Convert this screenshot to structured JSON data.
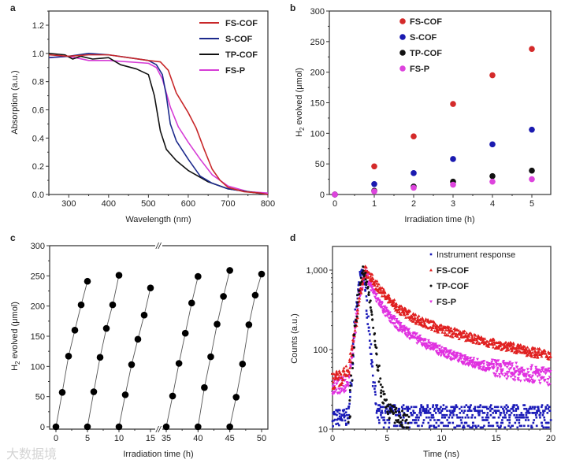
{
  "watermark": "大数据境",
  "chart_data": [
    {
      "panel": "a",
      "type": "line",
      "xlabel": "Wavelength (nm)",
      "ylabel": "Absorption (a.u.)",
      "xlim": [
        250,
        800
      ],
      "ylim": [
        0,
        1.3
      ],
      "xticks": [
        300,
        400,
        500,
        600,
        700,
        800
      ],
      "yticks": [
        0.0,
        0.2,
        0.4,
        0.6,
        0.8,
        1.0,
        1.2
      ],
      "ytick_labels": [
        "0.0",
        "0.2",
        "0.4",
        "0.6",
        "0.8",
        "1.0",
        "1.2"
      ],
      "legend_position": "top-right",
      "series": [
        {
          "name": "FS-COF",
          "color": "#c8282a",
          "x": [
            250,
            300,
            350,
            400,
            450,
            500,
            530,
            550,
            570,
            600,
            620,
            640,
            660,
            680,
            700,
            740,
            780,
            800
          ],
          "y": [
            0.99,
            0.98,
            0.99,
            0.99,
            0.97,
            0.95,
            0.94,
            0.88,
            0.72,
            0.58,
            0.47,
            0.32,
            0.18,
            0.1,
            0.05,
            0.02,
            0.01,
            0.0
          ]
        },
        {
          "name": "S-COF",
          "color": "#1c2a8c",
          "x": [
            250,
            300,
            350,
            400,
            450,
            500,
            520,
            535,
            545,
            555,
            570,
            600,
            630,
            660,
            700,
            750,
            800
          ],
          "y": [
            0.97,
            0.98,
            1.0,
            0.99,
            0.97,
            0.95,
            0.92,
            0.85,
            0.7,
            0.5,
            0.38,
            0.25,
            0.13,
            0.08,
            0.04,
            0.02,
            0.0
          ]
        },
        {
          "name": "TP-COF",
          "color": "#111111",
          "x": [
            250,
            290,
            310,
            330,
            360,
            400,
            430,
            470,
            500,
            515,
            530,
            545,
            570,
            600,
            650,
            700,
            750,
            800
          ],
          "y": [
            1.0,
            0.99,
            0.96,
            0.98,
            0.96,
            0.97,
            0.92,
            0.89,
            0.85,
            0.7,
            0.45,
            0.32,
            0.24,
            0.17,
            0.09,
            0.04,
            0.02,
            0.0
          ]
        },
        {
          "name": "FS-P",
          "color": "#d63cd6",
          "x": [
            250,
            300,
            350,
            400,
            450,
            500,
            520,
            535,
            555,
            575,
            600,
            630,
            660,
            700,
            750,
            800
          ],
          "y": [
            0.97,
            0.98,
            0.95,
            0.95,
            0.94,
            0.93,
            0.9,
            0.82,
            0.62,
            0.48,
            0.37,
            0.25,
            0.14,
            0.06,
            0.02,
            0.01
          ]
        }
      ]
    },
    {
      "panel": "b",
      "type": "scatter",
      "xlabel": "Irradiation time (h)",
      "ylabel": "H2 evolved (μmol)",
      "ylabel_main": "H",
      "ylabel_sub": "2",
      "ylabel_rest": " evolved (μmol)",
      "xlim": [
        -0.2,
        5.4
      ],
      "ylim": [
        0,
        300
      ],
      "xticks": [
        0,
        1,
        2,
        3,
        4,
        5
      ],
      "yticks": [
        0,
        50,
        100,
        150,
        200,
        250,
        300
      ],
      "legend_position": "top-left",
      "x": [
        0,
        1,
        2,
        3,
        4,
        5
      ],
      "series": [
        {
          "name": "FS-COF",
          "color": "#d42a2a",
          "values": [
            0,
            46,
            95,
            148,
            195,
            238
          ]
        },
        {
          "name": "S-COF",
          "color": "#1a1ab0",
          "values": [
            0,
            17,
            35,
            58,
            82,
            106
          ]
        },
        {
          "name": "TP-COF",
          "color": "#111111",
          "values": [
            0,
            6,
            13,
            21,
            30,
            39
          ]
        },
        {
          "name": "FS-P",
          "color": "#dd44dd",
          "values": [
            0,
            5,
            11,
            16,
            21,
            25
          ]
        }
      ]
    },
    {
      "panel": "c",
      "type": "line",
      "xlabel": "Irradiation time (h)",
      "ylabel_main": "H",
      "ylabel_sub": "2",
      "ylabel_rest": " evolved (μmol)",
      "axis_break": [
        15,
        35
      ],
      "break_symbol": "//",
      "ylim": [
        0,
        300
      ],
      "xticks": [
        0,
        5,
        10,
        15,
        35,
        40,
        45,
        50
      ],
      "yticks": [
        0,
        50,
        100,
        150,
        200,
        250,
        300
      ],
      "cycles": [
        {
          "x": [
            0,
            1,
            2,
            3,
            4,
            5
          ],
          "y": [
            0,
            57,
            117,
            160,
            202,
            241
          ]
        },
        {
          "x": [
            5,
            6,
            7,
            8,
            9,
            10
          ],
          "y": [
            0,
            58,
            115,
            163,
            202,
            251
          ]
        },
        {
          "x": [
            10,
            11,
            12,
            13,
            14,
            15
          ],
          "y": [
            0,
            53,
            103,
            145,
            185,
            230
          ]
        },
        {
          "x": [
            35,
            36,
            37,
            38,
            39,
            40
          ],
          "y": [
            0,
            51,
            105,
            155,
            205,
            249
          ]
        },
        {
          "x": [
            40,
            41,
            42,
            43,
            44,
            45
          ],
          "y": [
            0,
            65,
            116,
            170,
            216,
            259
          ]
        },
        {
          "x": [
            45,
            46,
            47,
            48,
            49,
            50
          ],
          "y": [
            0,
            49,
            104,
            169,
            218,
            253
          ]
        }
      ]
    },
    {
      "panel": "d",
      "type": "scatter",
      "xlabel": "Time (ns)",
      "ylabel": "Counts (a.u.)",
      "xlim": [
        0,
        20
      ],
      "ylim": [
        10,
        2000
      ],
      "yscale": "log",
      "xticks": [
        0,
        5,
        10,
        15,
        20
      ],
      "yticks": [
        10,
        100,
        1000
      ],
      "ytick_labels": [
        "10",
        "100",
        "1,000"
      ],
      "legend_position": "top-right",
      "series": [
        {
          "name": "Instrument response",
          "color": "#1a1ab8",
          "marker": "square",
          "x": [
            0,
            1.4,
            1.6,
            2,
            2.5,
            2.7,
            3,
            3.5,
            4,
            5,
            20
          ],
          "y": [
            14,
            14,
            20,
            200,
            800,
            1000,
            600,
            100,
            20,
            14,
            14
          ]
        },
        {
          "name": "FS-COF",
          "color": "#e02020",
          "marker": "triangle-up",
          "x": [
            0,
            1,
            1.5,
            2,
            2.5,
            3,
            4,
            5,
            6,
            8,
            10,
            12,
            14,
            16,
            18,
            20
          ],
          "y": [
            40,
            45,
            55,
            150,
            500,
            1000,
            650,
            450,
            330,
            230,
            180,
            150,
            125,
            110,
            95,
            85
          ]
        },
        {
          "name": "TP-COF",
          "color": "#111111",
          "marker": "circle",
          "x": [
            1.5,
            2,
            2.5,
            2.8,
            3.2,
            3.6,
            4,
            4.5,
            5,
            6,
            7
          ],
          "y": [
            12,
            150,
            700,
            1000,
            700,
            300,
            90,
            30,
            18,
            14,
            12
          ]
        },
        {
          "name": "FS-P",
          "color": "#e030e0",
          "marker": "triangle-down",
          "x": [
            0,
            1,
            1.5,
            2,
            2.5,
            3,
            4,
            5,
            6,
            8,
            10,
            12,
            14,
            16,
            18,
            20
          ],
          "y": [
            35,
            35,
            45,
            150,
            500,
            950,
            450,
            280,
            200,
            130,
            95,
            75,
            62,
            55,
            50,
            45
          ]
        }
      ]
    }
  ]
}
